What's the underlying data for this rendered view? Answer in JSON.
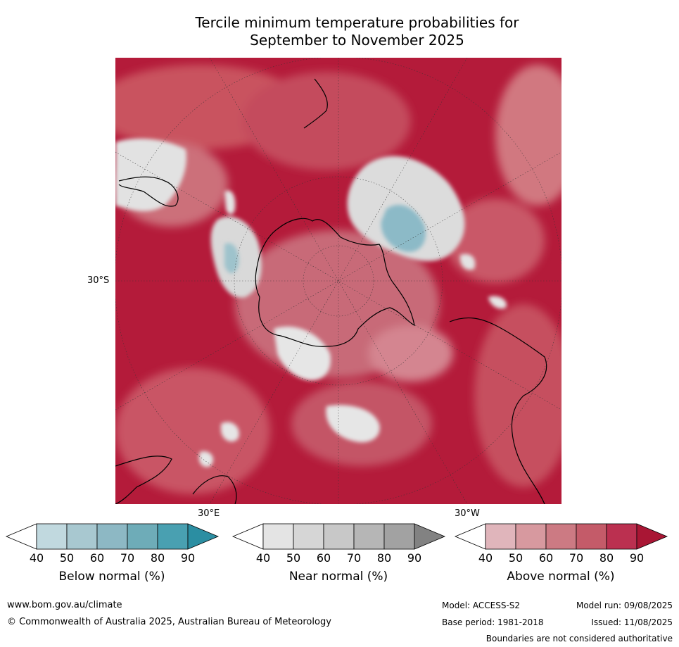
{
  "title_line1": "Tercile minimum temperature probabilities for",
  "title_line2": "September to November 2025",
  "map": {
    "projection": "south-polar-stereographic",
    "axis_labels": {
      "left": "30°S",
      "bottom_left": "30°E",
      "bottom_right": "30°W"
    },
    "colors": {
      "above_dominant": "#b41b3a",
      "near_normal": "#e5e5e5",
      "below_normal": "#8cbac7",
      "ocean_fill": "#b41b3a"
    }
  },
  "colorbars": [
    {
      "title": "Below normal (%)",
      "ticks": [
        "40",
        "50",
        "60",
        "70",
        "80",
        "90"
      ],
      "colors": [
        "#ffffff",
        "#c1d9df",
        "#a8c8d0",
        "#8db8c4",
        "#6eacb8",
        "#49a0b1",
        "#2b8ea2"
      ]
    },
    {
      "title": "Near normal (%)",
      "ticks": [
        "40",
        "50",
        "60",
        "70",
        "80",
        "90"
      ],
      "colors": [
        "#ffffff",
        "#e4e4e4",
        "#d6d6d6",
        "#c8c8c8",
        "#b6b6b6",
        "#a2a2a2",
        "#828282"
      ]
    },
    {
      "title": "Above normal (%)",
      "ticks": [
        "40",
        "50",
        "60",
        "70",
        "80",
        "90"
      ],
      "colors": [
        "#ffffff",
        "#e0b5bb",
        "#d7999f",
        "#cc7a83",
        "#c45b69",
        "#bb3050",
        "#a91634"
      ]
    }
  ],
  "footer": {
    "website": "www.bom.gov.au/climate",
    "copyright": "© Commonwealth of Australia 2025, Australian Bureau of Meteorology",
    "model": "Model: ACCESS-S2",
    "model_run": "Model run: 09/08/2025",
    "base_period": "Base period: 1981-2018",
    "issued": "Issued: 11/08/2025",
    "disclaimer": "Boundaries are not considered authoritative"
  }
}
